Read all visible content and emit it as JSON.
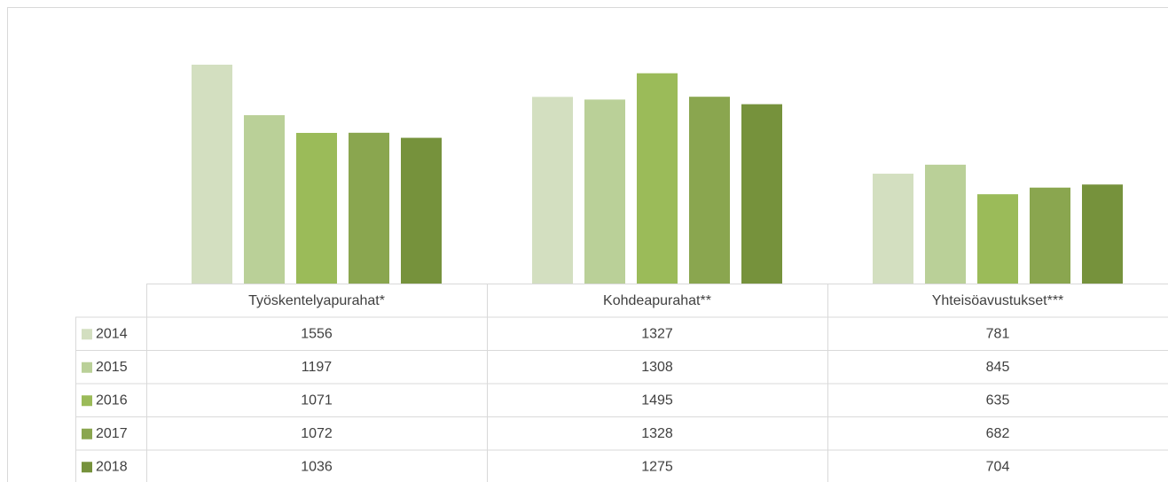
{
  "chart_data": {
    "type": "bar",
    "categories": [
      "Työskentelyapurahat*",
      "Kohdeapurahat**",
      "Yhteisöavustukset***"
    ],
    "series": [
      {
        "name": "2014",
        "color": "#d3dfc0",
        "values": [
          1556,
          1327,
          781
        ]
      },
      {
        "name": "2015",
        "color": "#bad098",
        "values": [
          1197,
          1308,
          845
        ]
      },
      {
        "name": "2016",
        "color": "#9bbb59",
        "values": [
          1071,
          1495,
          635
        ]
      },
      {
        "name": "2017",
        "color": "#8aa64f",
        "values": [
          1072,
          1328,
          682
        ]
      },
      {
        "name": "2018",
        "color": "#76923c",
        "values": [
          1036,
          1275,
          704
        ]
      }
    ],
    "data_table": true
  }
}
